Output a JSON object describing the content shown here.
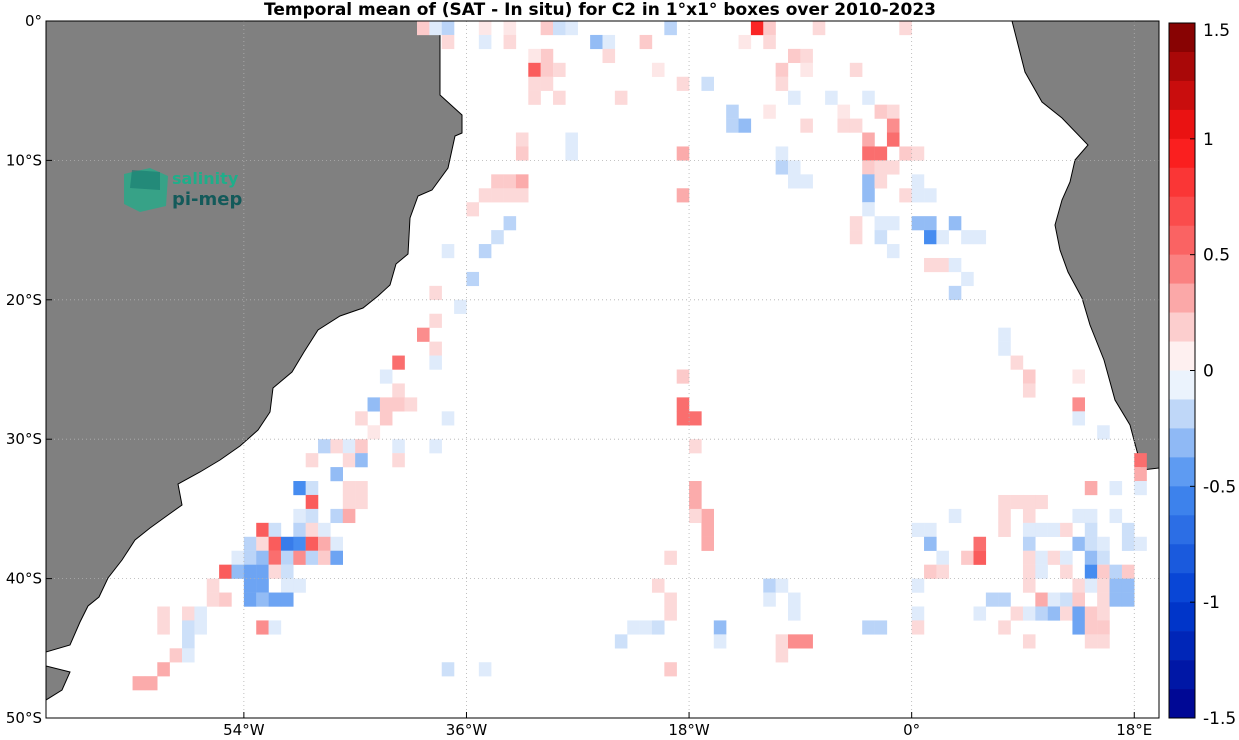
{
  "chart_data": {
    "type": "heatmap",
    "title": "Temporal mean of (SAT - In situ) for C2 in 1°x1° boxes over 2010-2023",
    "xlim": [
      -70,
      20
    ],
    "ylim": [
      -50,
      0
    ],
    "x_ticks": [
      {
        "value": -54,
        "label": "54°W"
      },
      {
        "value": -36,
        "label": "36°W"
      },
      {
        "value": -18,
        "label": "18°W"
      },
      {
        "value": 0,
        "label": "0°"
      },
      {
        "value": 18,
        "label": "18°E"
      }
    ],
    "y_ticks": [
      {
        "value": 0,
        "label": "0°"
      },
      {
        "value": -10,
        "label": "10°S"
      },
      {
        "value": -20,
        "label": "20°S"
      },
      {
        "value": -30,
        "label": "30°S"
      },
      {
        "value": -40,
        "label": "40°S"
      },
      {
        "value": -50,
        "label": "50°S"
      }
    ],
    "grid": "dotted",
    "colorbar": {
      "range": [
        -1.5,
        1.5
      ],
      "ticks": [
        "1.5",
        "1",
        "0.5",
        "0",
        "-0.5",
        "-1",
        "-1.5"
      ],
      "tick_values": [
        1.5,
        1,
        0.5,
        0,
        -0.5,
        -1,
        -1.5
      ]
    },
    "cells": [
      [
        -40,
        -1,
        0.2
      ],
      [
        -39,
        -1,
        -0.1
      ],
      [
        -38,
        -1,
        -0.2
      ],
      [
        -35,
        -1,
        0.1
      ],
      [
        -33,
        -1,
        0.1
      ],
      [
        -30,
        -1,
        0.2
      ],
      [
        -29,
        -1,
        -0.15
      ],
      [
        -28,
        -1,
        -0.1
      ],
      [
        -20,
        -1,
        -0.2
      ],
      [
        -13,
        -1,
        0.9
      ],
      [
        -12,
        -1,
        0.2
      ],
      [
        -8,
        -1,
        0.15
      ],
      [
        -1,
        -1,
        0.15
      ],
      [
        -38,
        -2,
        0.15
      ],
      [
        -35,
        -2,
        -0.1
      ],
      [
        -33,
        -2,
        0.15
      ],
      [
        -26,
        -2,
        -0.3
      ],
      [
        -25,
        -2,
        -0.1
      ],
      [
        -22,
        -2,
        0.2
      ],
      [
        -14,
        -2,
        0.1
      ],
      [
        -12,
        -2,
        0.15
      ],
      [
        -30,
        -3,
        0.2
      ],
      [
        -31,
        -3,
        0.1
      ],
      [
        -25,
        -3,
        0.15
      ],
      [
        -10,
        -3,
        0.2
      ],
      [
        -9,
        -3,
        0.15
      ],
      [
        -31,
        -4,
        0.6
      ],
      [
        -30,
        -4,
        0.2
      ],
      [
        -29,
        -4,
        0.15
      ],
      [
        -21,
        -4,
        0.1
      ],
      [
        -11,
        -4,
        0.2
      ],
      [
        -9,
        -4,
        0.1
      ],
      [
        -5,
        -4,
        0.15
      ],
      [
        -31,
        -5,
        0.15
      ],
      [
        -30,
        -5,
        0.15
      ],
      [
        -19,
        -5,
        0.15
      ],
      [
        -17,
        -5,
        -0.15
      ],
      [
        -11,
        -5,
        0.15
      ],
      [
        -31,
        -6,
        0.15
      ],
      [
        -29,
        -6,
        0.15
      ],
      [
        -24,
        -6,
        0.15
      ],
      [
        -10,
        -6,
        -0.1
      ],
      [
        -7,
        -6,
        -0.1
      ],
      [
        -4,
        -6,
        -0.1
      ],
      [
        -15,
        -7,
        -0.2
      ],
      [
        -12,
        -7,
        0.1
      ],
      [
        -6,
        -7,
        0.1
      ],
      [
        -3,
        -7,
        0.2
      ],
      [
        -2,
        -7,
        0.15
      ],
      [
        -15,
        -8,
        -0.2
      ],
      [
        -14,
        -8,
        -0.3
      ],
      [
        -9,
        -8,
        0.15
      ],
      [
        -6,
        -8,
        0.15
      ],
      [
        -5,
        -8,
        0.15
      ],
      [
        -2,
        -8,
        0.4
      ],
      [
        -32,
        -9,
        0.15
      ],
      [
        -28,
        -9,
        -0.1
      ],
      [
        -4,
        -9,
        0.3
      ],
      [
        -2,
        -9,
        0.5
      ],
      [
        -32,
        -10,
        0.2
      ],
      [
        -28,
        -10,
        -0.1
      ],
      [
        -19,
        -10,
        0.3
      ],
      [
        -11,
        -10,
        -0.1
      ],
      [
        -4,
        -10,
        0.5
      ],
      [
        -3,
        -10,
        0.5
      ],
      [
        -1,
        -10,
        0.2
      ],
      [
        0,
        -10,
        0.15
      ],
      [
        -11,
        -11,
        -0.2
      ],
      [
        -10,
        -11,
        -0.1
      ],
      [
        -4,
        -11,
        0.2
      ],
      [
        -3,
        -11,
        0.15
      ],
      [
        -2,
        -11,
        0.15
      ],
      [
        -34,
        -12,
        0.2
      ],
      [
        -33,
        -12,
        0.2
      ],
      [
        -32,
        -12,
        0.3
      ],
      [
        -10,
        -12,
        -0.1
      ],
      [
        -9,
        -12,
        -0.1
      ],
      [
        -4,
        -12,
        -0.3
      ],
      [
        -3,
        -12,
        0.15
      ],
      [
        0,
        -12,
        -0.1
      ],
      [
        -35,
        -13,
        0.15
      ],
      [
        -34,
        -13,
        0.15
      ],
      [
        -33,
        -13,
        0.15
      ],
      [
        -32,
        -13,
        0.15
      ],
      [
        -19,
        -13,
        0.3
      ],
      [
        -4,
        -13,
        -0.3
      ],
      [
        -1,
        -13,
        0.15
      ],
      [
        0,
        -13,
        -0.1
      ],
      [
        1,
        -13,
        -0.1
      ],
      [
        -36,
        -14,
        0.15
      ],
      [
        -4,
        -14,
        -0.1
      ],
      [
        -33,
        -15,
        -0.2
      ],
      [
        -5,
        -15,
        0.15
      ],
      [
        -3,
        -15,
        -0.1
      ],
      [
        -2,
        -15,
        -0.1
      ],
      [
        0,
        -15,
        -0.3
      ],
      [
        1,
        -15,
        -0.3
      ],
      [
        3,
        -15,
        -0.3
      ],
      [
        -34,
        -16,
        -0.15
      ],
      [
        -5,
        -16,
        0.15
      ],
      [
        -3,
        -16,
        -0.15
      ],
      [
        1,
        -16,
        -0.5
      ],
      [
        2,
        -16,
        -0.1
      ],
      [
        4,
        -16,
        -0.1
      ],
      [
        5,
        -16,
        -0.1
      ],
      [
        -38,
        -17,
        -0.1
      ],
      [
        -35,
        -17,
        -0.2
      ],
      [
        -2,
        -17,
        -0.1
      ],
      [
        1,
        -18,
        0.15
      ],
      [
        2,
        -18,
        0.15
      ],
      [
        3,
        -18,
        -0.1
      ],
      [
        -36,
        -19,
        -0.2
      ],
      [
        4,
        -19,
        -0.1
      ],
      [
        -39,
        -20,
        0.15
      ],
      [
        3,
        -20,
        -0.2
      ],
      [
        -37,
        -21,
        -0.1
      ],
      [
        -39,
        -22,
        0.15
      ],
      [
        -40,
        -23,
        0.4
      ],
      [
        7,
        -23,
        -0.1
      ],
      [
        -39,
        -24,
        0.15
      ],
      [
        7,
        -24,
        -0.1
      ],
      [
        -42,
        -25,
        0.5
      ],
      [
        -39,
        -25,
        -0.1
      ],
      [
        8,
        -25,
        0.15
      ],
      [
        -43,
        -26,
        -0.1
      ],
      [
        -19,
        -26,
        0.2
      ],
      [
        9,
        -26,
        0.2
      ],
      [
        13,
        -26,
        0.1
      ],
      [
        -42,
        -27,
        0.15
      ],
      [
        9,
        -27,
        0.15
      ],
      [
        -44,
        -28,
        -0.3
      ],
      [
        -43,
        -28,
        0.2
      ],
      [
        -42,
        -28,
        0.2
      ],
      [
        -41,
        -28,
        0.15
      ],
      [
        -19,
        -28,
        0.5
      ],
      [
        13,
        -28,
        0.4
      ],
      [
        -45,
        -29,
        0.15
      ],
      [
        -43,
        -29,
        0.2
      ],
      [
        -38,
        -29,
        -0.1
      ],
      [
        -19,
        -29,
        0.5
      ],
      [
        -18,
        -29,
        0.5
      ],
      [
        13,
        -29,
        -0.1
      ],
      [
        -44,
        -30,
        0.1
      ],
      [
        15,
        -30,
        -0.1
      ],
      [
        -48,
        -31,
        -0.2
      ],
      [
        -47,
        -31,
        0.15
      ],
      [
        -46,
        -31,
        -0.1
      ],
      [
        -45,
        -31,
        0.2
      ],
      [
        -42,
        -31,
        -0.1
      ],
      [
        -39,
        -31,
        -0.1
      ],
      [
        -18,
        -31,
        0.15
      ],
      [
        -49,
        -32,
        0.15
      ],
      [
        -46,
        -32,
        0.15
      ],
      [
        -45,
        -32,
        -0.3
      ],
      [
        -42,
        -32,
        0.15
      ],
      [
        18,
        -32,
        0.5
      ],
      [
        -47,
        -33,
        -0.3
      ],
      [
        18,
        -33,
        0.3
      ],
      [
        -50,
        -34,
        -0.5
      ],
      [
        -49,
        -34,
        -0.15
      ],
      [
        -46,
        -34,
        0.15
      ],
      [
        -45,
        -34,
        0.15
      ],
      [
        -18,
        -34,
        0.3
      ],
      [
        14,
        -34,
        0.3
      ],
      [
        16,
        -34,
        -0.1
      ],
      [
        18,
        -34,
        -0.1
      ],
      [
        -49,
        -35,
        0.6
      ],
      [
        -46,
        -35,
        0.15
      ],
      [
        -45,
        -35,
        0.15
      ],
      [
        -18,
        -35,
        0.3
      ],
      [
        7,
        -35,
        0.15
      ],
      [
        8,
        -35,
        0.15
      ],
      [
        9,
        -35,
        0.15
      ],
      [
        10,
        -35,
        0.15
      ],
      [
        -50,
        -36,
        -0.1
      ],
      [
        -49,
        -36,
        -0.15
      ],
      [
        -47,
        -36,
        -0.2
      ],
      [
        -46,
        -36,
        0.3
      ],
      [
        -17,
        -36,
        0.3
      ],
      [
        -18,
        -36,
        0.15
      ],
      [
        3,
        -36,
        -0.1
      ],
      [
        7,
        -36,
        0.15
      ],
      [
        9,
        -36,
        0.15
      ],
      [
        13,
        -36,
        -0.1
      ],
      [
        14,
        -36,
        -0.1
      ],
      [
        16,
        -36,
        -0.1
      ],
      [
        -53,
        -37,
        0.6
      ],
      [
        -52,
        -37,
        -0.15
      ],
      [
        -50,
        -37,
        -0.2
      ],
      [
        -49,
        -37,
        0.15
      ],
      [
        -48,
        -37,
        -0.1
      ],
      [
        -17,
        -37,
        0.3
      ],
      [
        0,
        -37,
        -0.1
      ],
      [
        1,
        -37,
        -0.1
      ],
      [
        7,
        -37,
        0.15
      ],
      [
        9,
        -37,
        -0.1
      ],
      [
        10,
        -37,
        -0.1
      ],
      [
        11,
        -37,
        -0.1
      ],
      [
        12,
        -37,
        0.15
      ],
      [
        14,
        -37,
        -0.15
      ],
      [
        17,
        -37,
        -0.15
      ],
      [
        -54,
        -38,
        -0.2
      ],
      [
        -53,
        -38,
        0.15
      ],
      [
        -52,
        -38,
        0.6
      ],
      [
        -51,
        -38,
        -0.6
      ],
      [
        -50,
        -38,
        -0.5
      ],
      [
        -49,
        -38,
        0.6
      ],
      [
        -48,
        -38,
        0.3
      ],
      [
        -47,
        -38,
        -0.1
      ],
      [
        -17,
        -38,
        0.3
      ],
      [
        1,
        -38,
        -0.3
      ],
      [
        5,
        -38,
        0.5
      ],
      [
        9,
        -38,
        -0.2
      ],
      [
        13,
        -38,
        -0.3
      ],
      [
        14,
        -38,
        -0.15
      ],
      [
        15,
        -38,
        -0.1
      ],
      [
        17,
        -38,
        -0.15
      ],
      [
        18,
        -38,
        -0.1
      ],
      [
        -55,
        -39,
        -0.1
      ],
      [
        -54,
        -39,
        -0.2
      ],
      [
        -53,
        -39,
        -0.3
      ],
      [
        -52,
        -39,
        0.5
      ],
      [
        -51,
        -39,
        -0.2
      ],
      [
        -50,
        -39,
        0.4
      ],
      [
        -49,
        -39,
        -0.2
      ],
      [
        -48,
        -39,
        0.2
      ],
      [
        -47,
        -39,
        -0.4
      ],
      [
        -20,
        -39,
        0.15
      ],
      [
        2,
        -39,
        -0.1
      ],
      [
        4,
        -39,
        0.2
      ],
      [
        5,
        -39,
        0.6
      ],
      [
        9,
        -39,
        0.15
      ],
      [
        10,
        -39,
        -0.1
      ],
      [
        11,
        -39,
        0.15
      ],
      [
        12,
        -39,
        -0.1
      ],
      [
        14,
        -39,
        -0.3
      ],
      [
        15,
        -39,
        -0.15
      ],
      [
        -56,
        -40,
        0.6
      ],
      [
        -55,
        -40,
        -0.3
      ],
      [
        -54,
        -40,
        -0.4
      ],
      [
        -53,
        -40,
        -0.4
      ],
      [
        -52,
        -40,
        0.15
      ],
      [
        -51,
        -40,
        -0.15
      ],
      [
        1,
        -40,
        0.2
      ],
      [
        2,
        -40,
        0.15
      ],
      [
        9,
        -40,
        0.15
      ],
      [
        10,
        -40,
        -0.1
      ],
      [
        12,
        -40,
        0.15
      ],
      [
        14,
        -40,
        -0.5
      ],
      [
        15,
        -40,
        0.2
      ],
      [
        16,
        -40,
        -0.2
      ],
      [
        17,
        -40,
        0.2
      ],
      [
        -57,
        -41,
        0.15
      ],
      [
        -54,
        -41,
        -0.4
      ],
      [
        -53,
        -41,
        -0.4
      ],
      [
        -51,
        -41,
        -0.1
      ],
      [
        -50,
        -41,
        -0.1
      ],
      [
        -21,
        -41,
        0.15
      ],
      [
        -12,
        -41,
        -0.2
      ],
      [
        -11,
        -41,
        -0.1
      ],
      [
        0,
        -41,
        -0.1
      ],
      [
        9,
        -41,
        0.15
      ],
      [
        13,
        -41,
        0.15
      ],
      [
        14,
        -41,
        -0.1
      ],
      [
        15,
        -41,
        0.15
      ],
      [
        16,
        -41,
        -0.3
      ],
      [
        17,
        -41,
        -0.3
      ],
      [
        -57,
        -42,
        0.15
      ],
      [
        -56,
        -42,
        0.2
      ],
      [
        -54,
        -42,
        -0.4
      ],
      [
        -53,
        -42,
        -0.3
      ],
      [
        -52,
        -42,
        -0.4
      ],
      [
        -51,
        -42,
        -0.4
      ],
      [
        -20,
        -42,
        0.15
      ],
      [
        -12,
        -42,
        -0.1
      ],
      [
        -10,
        -42,
        -0.1
      ],
      [
        6,
        -42,
        -0.2
      ],
      [
        7,
        -42,
        -0.2
      ],
      [
        10,
        -42,
        0.3
      ],
      [
        11,
        -42,
        -0.1
      ],
      [
        12,
        -42,
        -0.15
      ],
      [
        13,
        -42,
        0.2
      ],
      [
        15,
        -42,
        0.15
      ],
      [
        16,
        -42,
        -0.3
      ],
      [
        17,
        -42,
        -0.3
      ],
      [
        -61,
        -43,
        0.15
      ],
      [
        -59,
        -43,
        0.15
      ],
      [
        -58,
        -43,
        -0.1
      ],
      [
        -20,
        -43,
        0.15
      ],
      [
        -10,
        -43,
        -0.1
      ],
      [
        0,
        -43,
        -0.1
      ],
      [
        5,
        -43,
        -0.1
      ],
      [
        8,
        -43,
        0.15
      ],
      [
        9,
        -43,
        -0.1
      ],
      [
        10,
        -43,
        -0.2
      ],
      [
        11,
        -43,
        -0.3
      ],
      [
        12,
        -43,
        0.15
      ],
      [
        13,
        -43,
        -0.4
      ],
      [
        14,
        -43,
        0.2
      ],
      [
        15,
        -43,
        0.15
      ],
      [
        -61,
        -44,
        0.15
      ],
      [
        -59,
        -44,
        -0.15
      ],
      [
        -58,
        -44,
        -0.1
      ],
      [
        -53,
        -44,
        0.4
      ],
      [
        -52,
        -44,
        -0.1
      ],
      [
        -23,
        -44,
        -0.1
      ],
      [
        -22,
        -44,
        -0.1
      ],
      [
        -21,
        -44,
        -0.15
      ],
      [
        -16,
        -44,
        -0.3
      ],
      [
        -4,
        -44,
        -0.2
      ],
      [
        -3,
        -44,
        -0.2
      ],
      [
        0,
        -44,
        0.15
      ],
      [
        7,
        -44,
        0.15
      ],
      [
        13,
        -44,
        -0.4
      ],
      [
        14,
        -44,
        0.2
      ],
      [
        15,
        -44,
        0.2
      ],
      [
        -59,
        -45,
        -0.15
      ],
      [
        -24,
        -45,
        -0.15
      ],
      [
        -16,
        -45,
        -0.1
      ],
      [
        -11,
        -45,
        0.15
      ],
      [
        -10,
        -45,
        0.4
      ],
      [
        -9,
        -45,
        0.4
      ],
      [
        9,
        -45,
        0.15
      ],
      [
        14,
        -45,
        0.15
      ],
      [
        15,
        -45,
        0.15
      ],
      [
        -60,
        -46,
        0.2
      ],
      [
        -59,
        -46,
        -0.1
      ],
      [
        -11,
        -46,
        0.15
      ],
      [
        -61,
        -47,
        0.3
      ],
      [
        -38,
        -47,
        -0.15
      ],
      [
        -35,
        -47,
        -0.1
      ],
      [
        -20,
        -47,
        0.2
      ],
      [
        -63,
        -48,
        0.3
      ],
      [
        -62,
        -48,
        0.3
      ]
    ],
    "logo": {
      "line1": "salinity",
      "line2": "pi-mep"
    }
  }
}
